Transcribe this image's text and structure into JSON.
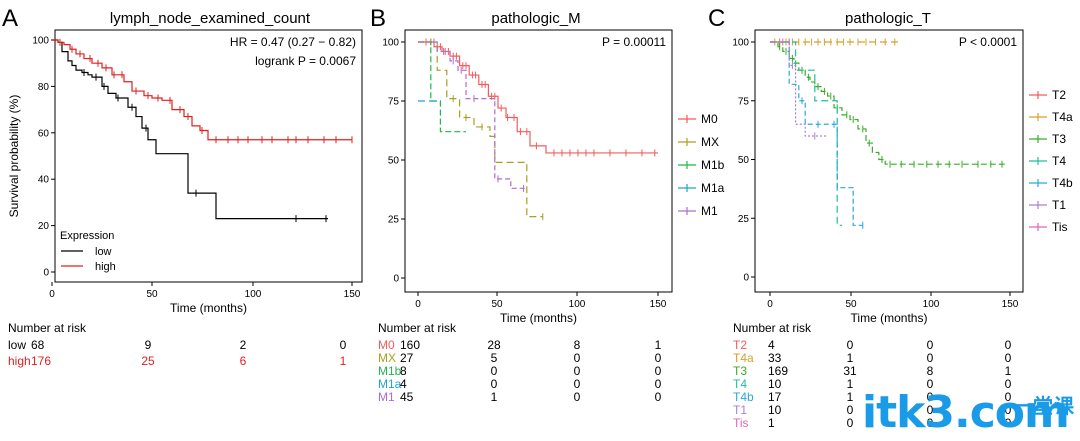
{
  "colors": {
    "low": "#000000",
    "high": "#e02020",
    "M0": "#f25c5c",
    "MX": "#a8a020",
    "M1b": "#23b54e",
    "M1a": "#1fa3c9",
    "M1": "#b36bcc",
    "T2": "#f25c5c",
    "T4a": "#d9a02a",
    "T3": "#3aab2a",
    "T4": "#1fbf9a",
    "T4b": "#29a9d9",
    "T1": "#a97fd6",
    "Tis": "#e066b8"
  },
  "watermark": {
    "text": "itk3.com",
    "cn": "一堂课"
  },
  "chart_data": [
    {
      "type": "line",
      "panel": "A",
      "title": "lymph_node_examined_count",
      "xlabel": "Time (months)",
      "ylabel": "Survival probability (%)",
      "xlim": [
        0,
        150
      ],
      "ylim": [
        0,
        100
      ],
      "xticks": [
        "0",
        "50",
        "100",
        "150"
      ],
      "yticks": [
        "0",
        "20",
        "40",
        "60",
        "80",
        "100"
      ],
      "annotation": [
        "HR = 0.47 (0.27 − 0.82)",
        "logrank P = 0.0067"
      ],
      "legend_title": "Expression",
      "series": [
        {
          "name": "low",
          "color_key": "low",
          "x": [
            0,
            3,
            5,
            8,
            10,
            12,
            15,
            18,
            20,
            25,
            28,
            32,
            38,
            42,
            45,
            48,
            52,
            56,
            60,
            64,
            68,
            74,
            82,
            100,
            122,
            138
          ],
          "y": [
            100,
            99,
            95,
            91,
            89,
            87,
            86,
            85,
            84,
            80,
            77,
            75,
            71,
            67,
            62,
            57,
            51,
            51,
            51,
            51,
            34,
            34,
            23,
            23,
            23,
            23
          ],
          "censor_x": [
            16,
            22,
            26,
            33,
            40,
            47,
            72,
            122,
            137
          ]
        },
        {
          "name": "high",
          "color_key": "high",
          "x": [
            0,
            3,
            6,
            9,
            12,
            16,
            20,
            25,
            30,
            36,
            40,
            46,
            50,
            55,
            60,
            66,
            70,
            74,
            78,
            85,
            100,
            120,
            150
          ],
          "y": [
            100,
            99,
            98,
            96,
            94,
            92,
            90,
            88,
            85,
            82,
            78,
            76,
            75,
            74,
            70,
            67,
            63,
            61,
            57,
            57,
            57,
            57,
            57
          ],
          "censor_x": [
            4,
            10,
            14,
            19,
            23,
            27,
            31,
            35,
            42,
            48,
            53,
            59,
            64,
            68,
            75,
            82,
            88,
            93,
            98,
            105,
            110,
            118,
            122,
            128,
            136,
            142,
            150
          ]
        }
      ],
      "risk_table": {
        "header": "Number at risk",
        "rows": [
          {
            "label": "low",
            "values": [
              "68",
              "9",
              "2",
              "0"
            ],
            "color_key": "low"
          },
          {
            "label": "high",
            "values": [
              "176",
              "25",
              "6",
              "1"
            ],
            "color_key": "high"
          }
        ]
      }
    },
    {
      "type": "line",
      "panel": "B",
      "title": "pathologic_M",
      "xlabel": "Time (months)",
      "ylabel": "",
      "xlim": [
        0,
        150
      ],
      "ylim": [
        0,
        100
      ],
      "xticks": [
        "0",
        "50",
        "100",
        "150"
      ],
      "yticks": [
        "0",
        "25",
        "50",
        "75",
        "100"
      ],
      "annotation": [
        "P = 0.00011"
      ],
      "series": [
        {
          "name": "M0",
          "color_key": "M0",
          "x": [
            0,
            10,
            15,
            20,
            26,
            32,
            38,
            44,
            50,
            55,
            62,
            70,
            80,
            100,
            150
          ],
          "y": [
            100,
            98,
            96,
            94,
            90,
            86,
            82,
            77,
            72,
            68,
            62,
            56,
            53,
            53,
            53
          ],
          "censor_x": [
            5,
            8,
            12,
            14,
            17,
            19,
            22,
            24,
            28,
            30,
            34,
            36,
            40,
            42,
            46,
            48,
            52,
            56,
            60,
            64,
            68,
            74,
            85,
            90,
            95,
            100,
            105,
            110,
            120,
            130,
            140,
            148
          ]
        },
        {
          "name": "MX",
          "color_key": "MX",
          "x": [
            0,
            12,
            18,
            26,
            35,
            45,
            48,
            64,
            68,
            78
          ],
          "y": [
            100,
            88,
            76,
            68,
            64,
            60,
            49,
            49,
            26,
            26
          ],
          "censor_x": [
            8,
            22,
            30,
            40,
            78
          ]
        },
        {
          "name": "M1b",
          "color_key": "M1b",
          "x": [
            0,
            8,
            14,
            30
          ],
          "y": [
            100,
            75,
            62,
            62
          ],
          "censor_x": []
        },
        {
          "name": "M1a",
          "color_key": "M1a",
          "x": [
            0,
            4,
            14
          ],
          "y": [
            75,
            75,
            75
          ],
          "censor_x": []
        },
        {
          "name": "M1",
          "color_key": "M1",
          "x": [
            0,
            12,
            20,
            25,
            30,
            45,
            48,
            58,
            68
          ],
          "y": [
            100,
            96,
            92,
            88,
            76,
            76,
            42,
            38,
            38
          ],
          "censor_x": [
            10,
            16,
            22,
            27,
            35,
            50,
            66
          ]
        }
      ],
      "risk_table": {
        "header": "Number at risk",
        "rows": [
          {
            "label": "M0",
            "values": [
              "160",
              "28",
              "8",
              "1"
            ],
            "color_key": "M0"
          },
          {
            "label": "MX",
            "values": [
              "27",
              "5",
              "0",
              "0"
            ],
            "color_key": "MX"
          },
          {
            "label": "M1b",
            "values": [
              "8",
              "0",
              "0",
              "0"
            ],
            "color_key": "M1b"
          },
          {
            "label": "M1a",
            "values": [
              "4",
              "0",
              "0",
              "0"
            ],
            "color_key": "M1a"
          },
          {
            "label": "M1",
            "values": [
              "45",
              "1",
              "0",
              "0"
            ],
            "color_key": "M1"
          }
        ]
      }
    },
    {
      "type": "line",
      "panel": "C",
      "title": "pathologic_T",
      "xlabel": "Time (months)",
      "ylabel": "",
      "xlim": [
        0,
        150
      ],
      "ylim": [
        0,
        100
      ],
      "xticks": [
        "0",
        "50",
        "100",
        "150"
      ],
      "yticks": [
        "0",
        "25",
        "50",
        "75",
        "100"
      ],
      "annotation": [
        "P < 0.0001"
      ],
      "series": [
        {
          "name": "T2",
          "color_key": "T2",
          "x": [
            0,
            12
          ],
          "y": [
            100,
            100
          ],
          "censor_x": [
            6,
            12
          ]
        },
        {
          "name": "T4a",
          "color_key": "T4a",
          "x": [
            0,
            80
          ],
          "y": [
            100,
            100
          ],
          "censor_x": [
            3,
            6,
            10,
            14,
            18,
            22,
            26,
            30,
            34,
            38,
            42,
            46,
            50,
            55,
            60,
            66,
            72,
            78
          ]
        },
        {
          "name": "T3",
          "color_key": "T3",
          "x": [
            0,
            5,
            8,
            12,
            15,
            18,
            22,
            25,
            28,
            32,
            36,
            40,
            45,
            50,
            55,
            60,
            64,
            68,
            72,
            80,
            100,
            148
          ],
          "y": [
            100,
            98,
            96,
            93,
            91,
            88,
            85,
            83,
            81,
            79,
            77,
            72,
            69,
            67,
            63,
            57,
            53,
            50,
            48,
            48,
            48,
            48
          ],
          "censor_x": [
            6,
            10,
            14,
            20,
            24,
            30,
            34,
            38,
            42,
            48,
            52,
            58,
            62,
            70,
            75,
            82,
            90,
            98,
            105,
            112,
            120,
            130,
            138,
            145
          ]
        },
        {
          "name": "T4",
          "color_key": "T4",
          "x": [
            0,
            10,
            16,
            28,
            34,
            42,
            45
          ],
          "y": [
            100,
            100,
            88,
            75,
            75,
            22,
            22
          ],
          "censor_x": []
        },
        {
          "name": "T4b",
          "color_key": "T4b",
          "x": [
            0,
            12,
            18,
            22,
            36,
            42,
            48,
            52,
            58
          ],
          "y": [
            100,
            82,
            75,
            65,
            65,
            38,
            38,
            22,
            22
          ],
          "censor_x": [
            20,
            30,
            40,
            58
          ]
        },
        {
          "name": "T1",
          "color_key": "T1",
          "x": [
            0,
            12,
            16,
            22,
            36
          ],
          "y": [
            100,
            90,
            65,
            60,
            60
          ],
          "censor_x": [
            14,
            28
          ]
        },
        {
          "name": "Tis",
          "color_key": "Tis",
          "x": [
            0,
            8
          ],
          "y": [
            100,
            100
          ],
          "censor_x": [
            8
          ]
        }
      ],
      "risk_table": {
        "header": "Number at risk",
        "rows": [
          {
            "label": "T2",
            "values": [
              "4",
              "0",
              "0",
              "0"
            ],
            "color_key": "T2"
          },
          {
            "label": "T4a",
            "values": [
              "33",
              "1",
              "0",
              "0"
            ],
            "color_key": "T4a"
          },
          {
            "label": "T3",
            "values": [
              "169",
              "31",
              "8",
              "1"
            ],
            "color_key": "T3"
          },
          {
            "label": "T4",
            "values": [
              "10",
              "1",
              "0",
              "0"
            ],
            "color_key": "T4"
          },
          {
            "label": "T4b",
            "values": [
              "17",
              "1",
              "0",
              "0"
            ],
            "color_key": "T4b"
          },
          {
            "label": "T1",
            "values": [
              "10",
              "0",
              "0",
              "0"
            ],
            "color_key": "T1"
          },
          {
            "label": "Tis",
            "values": [
              "1",
              "0",
              "0",
              "0"
            ],
            "color_key": "Tis"
          }
        ]
      }
    }
  ]
}
